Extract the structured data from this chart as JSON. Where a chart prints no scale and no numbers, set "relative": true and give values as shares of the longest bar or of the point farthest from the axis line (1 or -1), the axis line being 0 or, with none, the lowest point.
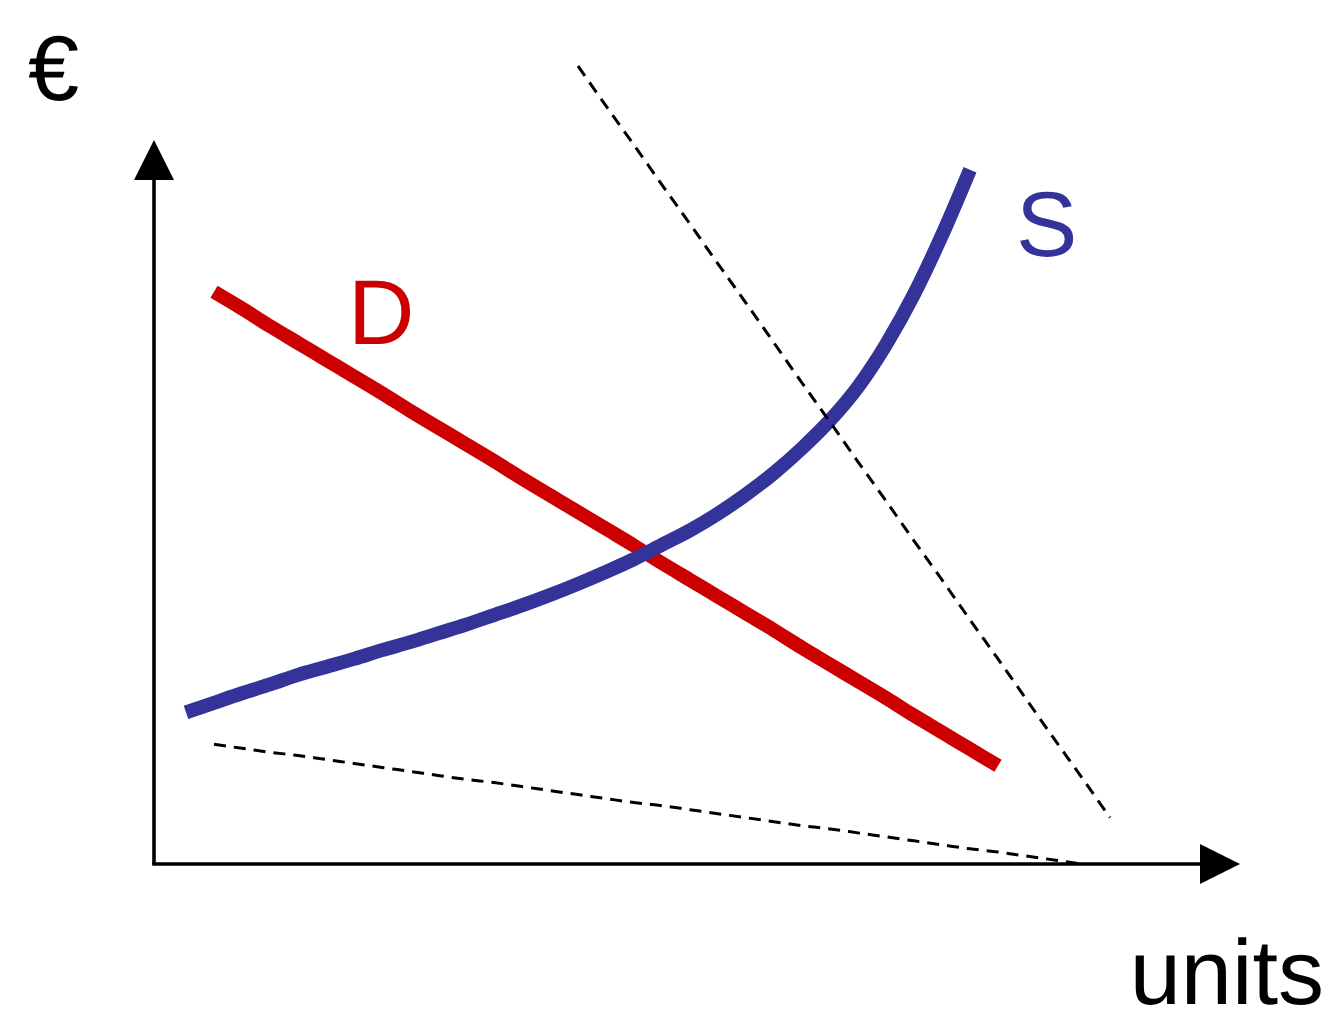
{
  "chart_data": {
    "type": "line",
    "relative": true,
    "xlabel": "units",
    "ylabel": "€",
    "categories": [
      null,
      null,
      null,
      null,
      null,
      null,
      null,
      null,
      null,
      null,
      null,
      null,
      null,
      null,
      null,
      null,
      null,
      null,
      null,
      null,
      null,
      null,
      null,
      null,
      null,
      null,
      null,
      null,
      null,
      null,
      null,
      null,
      null,
      null
    ],
    "series": [
      {
        "name": "D",
        "color": "#cc0000",
        "values": [
          null,
          0.717,
          0.696,
          0.674,
          0.653,
          0.632,
          0.611,
          0.59,
          0.568,
          0.547,
          0.526,
          0.505,
          0.483,
          0.462,
          0.441,
          0.42,
          0.399,
          0.377,
          0.356,
          0.335,
          0.314,
          0.293,
          0.271,
          0.25,
          0.229,
          0.208,
          0.186,
          0.165,
          0.144,
          0.123,
          null,
          null,
          null,
          null
        ]
      },
      {
        "name": "S",
        "color": "#333399",
        "values": [
          0.19,
          0.202,
          0.214,
          0.225,
          0.237,
          0.247,
          0.257,
          0.268,
          0.278,
          0.289,
          0.3,
          0.312,
          0.324,
          0.337,
          0.351,
          0.366,
          0.382,
          0.4,
          0.418,
          0.439,
          0.463,
          0.49,
          0.521,
          0.556,
          0.598,
          0.651,
          0.714,
          0.788,
          0.87,
          null,
          null,
          null,
          null,
          null
        ]
      },
      {
        "color": "#000000",
        "line_style": "dashed",
        "values": [
          null,
          null,
          null,
          null,
          null,
          null,
          null,
          null,
          null,
          null,
          null,
          null,
          null,
          null,
          1,
          0.95,
          0.901,
          0.851,
          0.802,
          0.752,
          0.703,
          0.653,
          0.603,
          0.554,
          0.504,
          0.455,
          0.405,
          0.356,
          0.306,
          0.257,
          0.207,
          0.157,
          0.108,
          0.058
        ]
      },
      {
        "color": "#000000",
        "line_style": "dashed",
        "values": [
          null,
          0.15,
          0.145,
          0.14,
          0.136,
          0.131,
          0.126,
          0.121,
          0.116,
          0.111,
          0.106,
          0.102,
          0.097,
          0.092,
          0.087,
          0.082,
          0.077,
          0.073,
          0.068,
          0.063,
          0.058,
          0.053,
          0.048,
          0.044,
          0.039,
          0.034,
          0.029,
          0.024,
          0.019,
          0.015,
          0.01,
          0.005,
          0,
          null
        ]
      }
    ]
  }
}
